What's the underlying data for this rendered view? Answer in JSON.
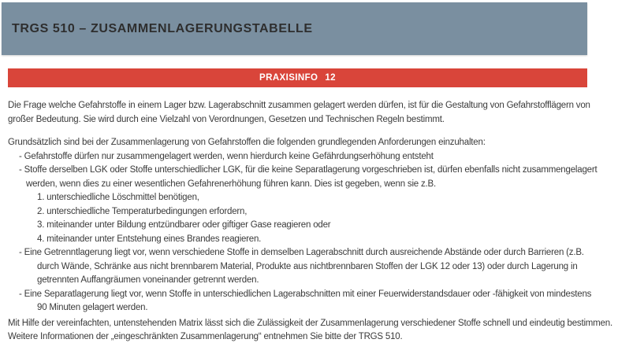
{
  "header": {
    "title": "TRGS 510 – ZUSAMMENLAGERUNGSTABELLE",
    "background_color": "#7a8fa0",
    "text_color": "#2e2e2e"
  },
  "banner": {
    "label": "PRAXISINFO",
    "number": "12",
    "background_color": "#d9453a",
    "text_color": "#ffffff"
  },
  "body": {
    "text_color": "#3a3a3a",
    "blocks": [
      {
        "name": "intro-paragraph",
        "lines": [
          {
            "indent": "p",
            "text": "Die Frage welche Gefahrstoffe in einem Lager bzw. Lagerabschnitt zusammen gelagert werden dürfen, ist für die Gestaltung von Gefahrstofflägern von"
          },
          {
            "indent": "p",
            "text": "großer Bedeutung. Sie wird durch eine Vielzahl von Verordnungen, Gesetzen und Technischen Regeln bestimmt."
          }
        ]
      },
      {
        "name": "requirements-section",
        "lines": [
          {
            "indent": "p",
            "text": "Grundsätzlich sind bei der Zusammenlagerung von Gefahrstoffen die folgenden grundlegenden Anforderungen einzuhalten:"
          },
          {
            "indent": "bullet",
            "text": "- Gefahrstoffe dürfen nur zusammengelagert werden, wenn hierdurch keine Gefährdungserhöhung entsteht"
          },
          {
            "indent": "bullet",
            "text": "- Stoffe derselben LGK oder Stoffe unterschiedlicher LGK, für die keine Separatlagerung vorgeschrieben ist, dürfen ebenfalls nicht zusammengelagert"
          },
          {
            "indent": "cont",
            "text": "werden, wenn dies zu einer wesentlichen Gefahrenerhöhung führen kann. Dies ist gegeben, wenn sie z.B."
          },
          {
            "indent": "sub",
            "text": "1. unterschiedliche Löschmittel benötigen,"
          },
          {
            "indent": "sub",
            "text": "2. unterschiedliche Temperaturbedingungen erfordern,"
          },
          {
            "indent": "sub",
            "text": "3. miteinander unter Bildung entzündbarer oder giftiger Gase reagieren oder"
          },
          {
            "indent": "sub",
            "text": "4. miteinander unter Entstehung eines Brandes reagieren."
          },
          {
            "indent": "bullet",
            "text": "- Eine Getrenntlagerung liegt vor, wenn verschiedene Stoffe in demselben Lagerabschnitt durch ausreichende Abstände oder durch Barrieren (z.B."
          },
          {
            "indent": "sub",
            "text": "durch Wände, Schränke aus nicht brennbarem Material, Produkte aus nichtbrennbaren Stoffen der LGK 12 oder 13) oder durch Lagerung in"
          },
          {
            "indent": "sub",
            "text": "getrennten Auffangräumen voneinander getrennt werden."
          },
          {
            "indent": "bullet",
            "text": "- Eine Separatlagerung liegt vor, wenn Stoffe in unterschiedlichen Lagerabschnitten mit einer Feuerwiderstandsdauer oder -fähigkeit von mindestens"
          },
          {
            "indent": "sub",
            "text": "90 Minuten gelagert werden."
          }
        ]
      },
      {
        "name": "closing-paragraph",
        "lines": [
          {
            "indent": "p",
            "text": "Mit Hilfe der vereinfachten, untenstehenden Matrix lässt sich die Zulässigkeit der Zusammenlagerung verschiedener Stoffe schnell und eindeutig bestimmen."
          },
          {
            "indent": "p",
            "text": "Weitere Informationen der „eingeschränkten Zusammenlagerung“ entnehmen Sie bitte der TRGS 510."
          }
        ]
      }
    ]
  }
}
